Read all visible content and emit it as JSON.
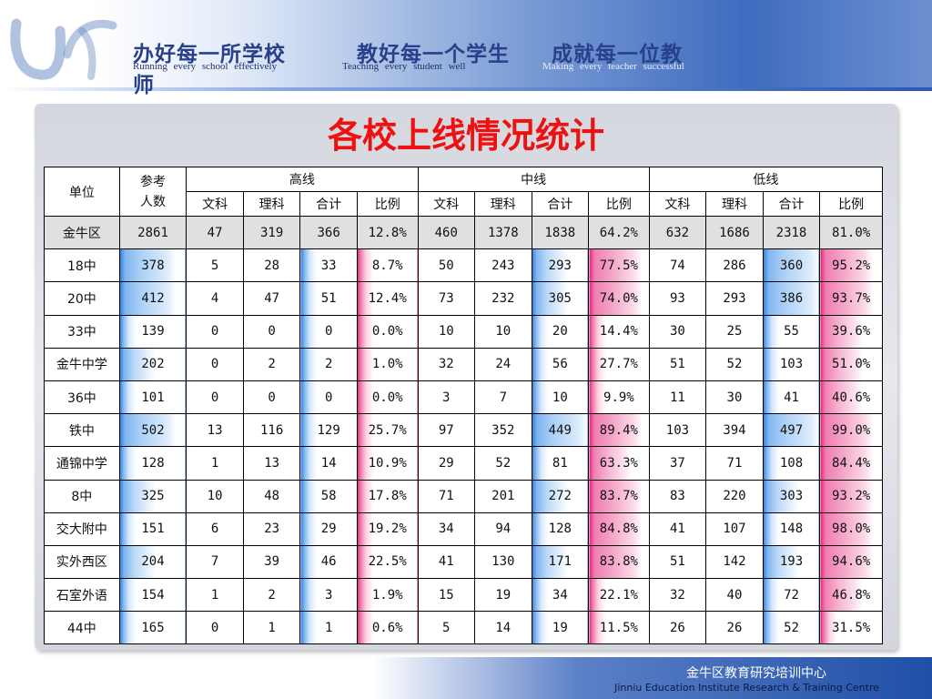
{
  "slogans": {
    "cn": [
      "办好每一所学校",
      "教好每一个学生",
      "成就每一位教",
      "师"
    ],
    "en": [
      "Running   every  school  effectively",
      "Teaching   every   student   well",
      "Making  every  teacher  successful"
    ]
  },
  "title": "各校上线情况统计",
  "table": {
    "col_unit": "单位",
    "col_count": "参考\n人数",
    "groups": [
      "高线",
      "中线",
      "低线"
    ],
    "subheaders": [
      "文科",
      "理科",
      "合计",
      "比例"
    ],
    "rows": [
      {
        "name": "金牛区",
        "count": "2861",
        "g": [
          "47",
          "319",
          "366",
          "12.8%"
        ],
        "m": [
          "460",
          "1378",
          "1838",
          "64.2%"
        ],
        "d": [
          "632",
          "1686",
          "2318",
          "81.0%"
        ]
      },
      {
        "name": "18中",
        "count": "378",
        "g": [
          "5",
          "28",
          "33",
          "8.7%"
        ],
        "m": [
          "50",
          "243",
          "293",
          "77.5%"
        ],
        "d": [
          "74",
          "286",
          "360",
          "95.2%"
        ]
      },
      {
        "name": "20中",
        "count": "412",
        "g": [
          "4",
          "47",
          "51",
          "12.4%"
        ],
        "m": [
          "73",
          "232",
          "305",
          "74.0%"
        ],
        "d": [
          "93",
          "293",
          "386",
          "93.7%"
        ]
      },
      {
        "name": "33中",
        "count": "139",
        "g": [
          "0",
          "0",
          "0",
          "0.0%"
        ],
        "m": [
          "10",
          "10",
          "20",
          "14.4%"
        ],
        "d": [
          "30",
          "25",
          "55",
          "39.6%"
        ]
      },
      {
        "name": "金牛中学",
        "count": "202",
        "g": [
          "0",
          "2",
          "2",
          "1.0%"
        ],
        "m": [
          "32",
          "24",
          "56",
          "27.7%"
        ],
        "d": [
          "51",
          "52",
          "103",
          "51.0%"
        ]
      },
      {
        "name": "36中",
        "count": "101",
        "g": [
          "0",
          "0",
          "0",
          "0.0%"
        ],
        "m": [
          "3",
          "7",
          "10",
          "9.9%"
        ],
        "d": [
          "11",
          "30",
          "41",
          "40.6%"
        ]
      },
      {
        "name": "铁中",
        "count": "502",
        "g": [
          "13",
          "116",
          "129",
          "25.7%"
        ],
        "m": [
          "97",
          "352",
          "449",
          "89.4%"
        ],
        "d": [
          "103",
          "394",
          "497",
          "99.0%"
        ]
      },
      {
        "name": "通锦中学",
        "count": "128",
        "g": [
          "1",
          "13",
          "14",
          "10.9%"
        ],
        "m": [
          "29",
          "52",
          "81",
          "63.3%"
        ],
        "d": [
          "37",
          "71",
          "108",
          "84.4%"
        ]
      },
      {
        "name": "8中",
        "count": "325",
        "g": [
          "10",
          "48",
          "58",
          "17.8%"
        ],
        "m": [
          "71",
          "201",
          "272",
          "83.7%"
        ],
        "d": [
          "83",
          "220",
          "303",
          "93.2%"
        ]
      },
      {
        "name": "交大附中",
        "count": "151",
        "g": [
          "6",
          "23",
          "29",
          "19.2%"
        ],
        "m": [
          "34",
          "94",
          "128",
          "84.8%"
        ],
        "d": [
          "41",
          "107",
          "148",
          "98.0%"
        ]
      },
      {
        "name": "实外西区",
        "count": "204",
        "g": [
          "7",
          "39",
          "46",
          "22.5%"
        ],
        "m": [
          "41",
          "130",
          "171",
          "83.8%"
        ],
        "d": [
          "51",
          "142",
          "193",
          "94.6%"
        ]
      },
      {
        "name": "石室外语",
        "count": "154",
        "g": [
          "1",
          "2",
          "3",
          "1.9%"
        ],
        "m": [
          "15",
          "19",
          "34",
          "22.1%"
        ],
        "d": [
          "32",
          "40",
          "72",
          "46.8%"
        ]
      },
      {
        "name": "44中",
        "count": "165",
        "g": [
          "0",
          "1",
          "1",
          "0.6%"
        ],
        "m": [
          "5",
          "14",
          "19",
          "11.5%"
        ],
        "d": [
          "26",
          "26",
          "52",
          "31.5%"
        ]
      }
    ]
  },
  "footer": {
    "cn": "金牛区教育研究培训中心",
    "en": "Jinniu Education Institute Research & Training Centre"
  }
}
